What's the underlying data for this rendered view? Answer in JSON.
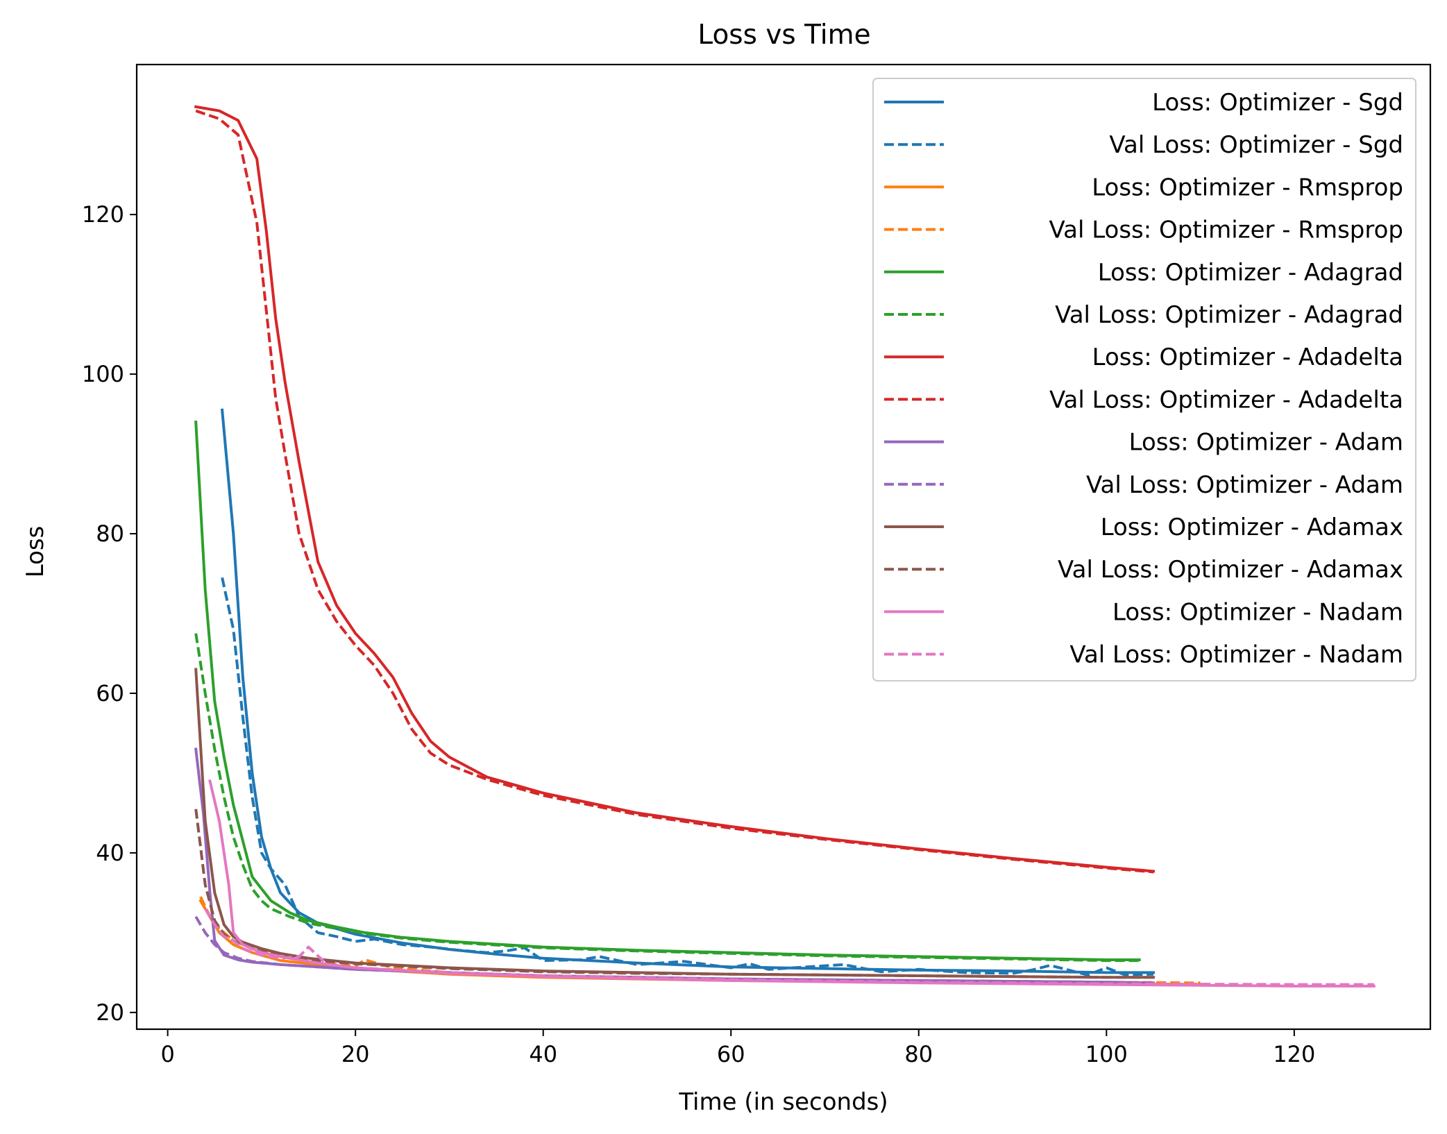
{
  "chart_data": {
    "type": "line",
    "title": "Loss vs Time",
    "xlabel": "Time (in seconds)",
    "ylabel": "Loss",
    "xlim": [
      -3.3,
      134.5
    ],
    "ylim": [
      17.9,
      138.8
    ],
    "xticks": [
      0,
      20,
      40,
      60,
      80,
      100,
      120
    ],
    "yticks": [
      20,
      40,
      60,
      80,
      100,
      120
    ],
    "grid": false,
    "legend_position": "top-right",
    "series": [
      {
        "name": "Loss: Optimizer - Sgd",
        "color": "#1f77b4",
        "dash": "solid",
        "x": [
          5.8,
          7.0,
          8.0,
          9.0,
          10.0,
          11.0,
          12.0,
          14.0,
          16.0,
          20.0,
          25.0,
          30.0,
          35.0,
          40.0,
          50.0,
          60.0,
          70.0,
          80.0,
          90.0,
          100.0,
          105.0
        ],
        "y": [
          95.5,
          80.0,
          62.0,
          50.0,
          42.0,
          38.0,
          35.0,
          32.5,
          31.2,
          29.8,
          28.7,
          27.9,
          27.3,
          26.8,
          26.2,
          25.7,
          25.5,
          25.3,
          25.2,
          25.0,
          25.0
        ]
      },
      {
        "name": "Val Loss: Optimizer - Sgd",
        "color": "#1f77b4",
        "dash": "dashed",
        "x": [
          5.8,
          7.0,
          8.0,
          9.0,
          10.0,
          11.0,
          12.5,
          14.0,
          16.0,
          18.0,
          20.0,
          22.0,
          25.0,
          28.0,
          31.0,
          34.0,
          36.0,
          38.0,
          40.0,
          44.0,
          46.0,
          50.0,
          55.0,
          60.0,
          62.0,
          64.0,
          68.0,
          72.0,
          76.0,
          80.0,
          85.0,
          90.0,
          92.0,
          94.0,
          98.0,
          100.0,
          102.0,
          105.0
        ],
        "y": [
          74.5,
          68.0,
          57.0,
          47.0,
          40.0,
          38.0,
          36.0,
          32.0,
          30.0,
          29.5,
          28.9,
          29.2,
          28.5,
          28.2,
          27.8,
          27.5,
          27.7,
          28.1,
          26.5,
          26.6,
          27.0,
          26.0,
          26.4,
          25.6,
          26.1,
          25.4,
          25.7,
          26.0,
          25.1,
          25.4,
          25.0,
          24.9,
          25.3,
          25.9,
          24.7,
          25.6,
          24.7,
          24.8
        ]
      },
      {
        "name": "Loss: Optimizer - Rmsprop",
        "color": "#ff7f0e",
        "dash": "solid",
        "x": [
          3.5,
          4.5,
          5.5,
          7.0,
          9.0,
          12.0,
          16.0,
          20.0,
          30.0,
          40.0,
          60.0,
          80.0,
          100.0,
          110.0
        ],
        "y": [
          34.0,
          32.0,
          30.0,
          28.5,
          27.5,
          26.5,
          26.0,
          25.5,
          24.8,
          24.4,
          24.0,
          23.8,
          23.6,
          23.5
        ]
      },
      {
        "name": "Val Loss: Optimizer - Rmsprop",
        "color": "#ff7f0e",
        "dash": "dashed",
        "x": [
          3.5,
          4.5,
          5.5,
          7.0,
          9.0,
          12.0,
          16.0,
          20.0,
          21.0,
          24.0,
          30.0,
          40.0,
          60.0,
          80.0,
          100.0,
          110.0
        ],
        "y": [
          34.5,
          32.0,
          30.5,
          29.0,
          28.0,
          27.0,
          26.2,
          25.8,
          26.6,
          25.6,
          25.0,
          24.6,
          24.2,
          24.0,
          23.8,
          23.7
        ]
      },
      {
        "name": "Loss: Optimizer - Adagrad",
        "color": "#2ca02c",
        "dash": "solid",
        "x": [
          3.0,
          4.0,
          5.0,
          6.0,
          7.0,
          8.0,
          9.0,
          10.0,
          11.0,
          13.0,
          15.0,
          18.0,
          21.0,
          25.0,
          30.0,
          40.0,
          50.0,
          60.0,
          70.0,
          80.0,
          90.0,
          100.0,
          103.5
        ],
        "y": [
          94.0,
          73.0,
          59.0,
          52.0,
          46.0,
          41.5,
          37.0,
          35.5,
          34.0,
          32.5,
          31.5,
          30.7,
          30.0,
          29.4,
          28.9,
          28.2,
          27.8,
          27.5,
          27.2,
          27.0,
          26.8,
          26.6,
          26.6
        ]
      },
      {
        "name": "Val Loss: Optimizer - Adagrad",
        "color": "#2ca02c",
        "dash": "dashed",
        "x": [
          3.0,
          4.0,
          5.0,
          6.0,
          7.0,
          8.0,
          9.0,
          10.0,
          11.0,
          13.0,
          15.0,
          18.0,
          21.0,
          25.0,
          30.0,
          40.0,
          50.0,
          60.0,
          70.0,
          80.0,
          90.0,
          100.0,
          103.5
        ],
        "y": [
          67.5,
          60.0,
          53.0,
          47.0,
          42.0,
          38.5,
          35.5,
          34.0,
          33.0,
          32.0,
          31.2,
          30.5,
          29.9,
          29.3,
          28.8,
          28.1,
          27.7,
          27.4,
          27.1,
          26.9,
          26.7,
          26.5,
          26.5
        ]
      },
      {
        "name": "Loss: Optimizer - Adadelta",
        "color": "#d62728",
        "dash": "solid",
        "x": [
          3.0,
          5.5,
          7.5,
          9.5,
          10.5,
          11.5,
          12.5,
          14.0,
          16.0,
          18.0,
          20.0,
          22.0,
          24.0,
          26.0,
          28.0,
          30.0,
          34.0,
          40.0,
          50.0,
          60.0,
          70.0,
          80.0,
          90.0,
          100.0,
          105.0
        ],
        "y": [
          133.5,
          133.0,
          131.8,
          127.0,
          118.0,
          107.0,
          99.0,
          89.0,
          76.5,
          71.0,
          67.5,
          65.0,
          62.0,
          57.5,
          54.0,
          52.0,
          49.5,
          47.5,
          45.0,
          43.3,
          41.8,
          40.5,
          39.3,
          38.2,
          37.7
        ]
      },
      {
        "name": "Val Loss: Optimizer - Adadelta",
        "color": "#d62728",
        "dash": "dashed",
        "x": [
          3.0,
          5.5,
          7.5,
          9.5,
          10.5,
          11.5,
          12.5,
          14.0,
          16.0,
          18.0,
          20.0,
          22.0,
          24.0,
          26.0,
          28.0,
          30.0,
          34.0,
          40.0,
          50.0,
          60.0,
          70.0,
          80.0,
          90.0,
          100.0,
          105.0
        ],
        "y": [
          133.0,
          132.0,
          130.0,
          119.0,
          108.0,
          97.0,
          90.0,
          80.0,
          73.0,
          69.0,
          66.0,
          63.5,
          60.0,
          55.5,
          52.5,
          51.0,
          49.2,
          47.2,
          44.8,
          43.1,
          41.7,
          40.4,
          39.2,
          38.1,
          37.6
        ]
      },
      {
        "name": "Loss: Optimizer - Adam",
        "color": "#9467bd",
        "dash": "solid",
        "x": [
          3.0,
          3.8,
          4.5,
          5.0,
          6.0,
          7.5,
          9.0,
          12.0,
          16.0,
          20.0,
          30.0,
          40.0,
          60.0,
          80.0,
          100.0,
          105.0
        ],
        "y": [
          53.0,
          45.0,
          35.0,
          29.0,
          27.2,
          26.6,
          26.3,
          26.0,
          25.7,
          25.4,
          25.0,
          24.6,
          24.2,
          24.0,
          23.8,
          23.7
        ]
      },
      {
        "name": "Val Loss: Optimizer - Adam",
        "color": "#9467bd",
        "dash": "dashed",
        "x": [
          3.0,
          4.0,
          5.0,
          6.0,
          7.5,
          9.0,
          12.0,
          16.0,
          20.0,
          30.0,
          40.0,
          60.0,
          80.0,
          100.0,
          105.0
        ],
        "y": [
          32.0,
          30.0,
          28.5,
          27.5,
          26.8,
          26.4,
          26.0,
          25.7,
          25.4,
          25.0,
          24.6,
          24.2,
          24.0,
          23.8,
          23.7
        ]
      },
      {
        "name": "Loss: Optimizer - Adamax",
        "color": "#8c564b",
        "dash": "solid",
        "x": [
          3.0,
          4.0,
          5.0,
          6.0,
          7.0,
          8.0,
          10.0,
          12.0,
          15.0,
          20.0,
          25.0,
          30.0,
          40.0,
          50.0,
          60.0,
          80.0,
          100.0,
          105.0
        ],
        "y": [
          63.0,
          44.0,
          35.0,
          31.0,
          29.5,
          28.8,
          28.0,
          27.4,
          26.8,
          26.2,
          25.9,
          25.6,
          25.2,
          25.0,
          24.8,
          24.6,
          24.4,
          24.4
        ]
      },
      {
        "name": "Val Loss: Optimizer - Adamax",
        "color": "#8c564b",
        "dash": "dashed",
        "x": [
          3.0,
          4.0,
          5.0,
          6.0,
          7.0,
          8.0,
          10.0,
          12.0,
          15.0,
          20.0,
          25.0,
          30.0,
          40.0,
          50.0,
          60.0,
          80.0,
          100.0,
          105.0
        ],
        "y": [
          45.5,
          36.0,
          31.5,
          29.8,
          29.0,
          28.5,
          27.8,
          27.2,
          26.6,
          26.1,
          25.8,
          25.5,
          25.1,
          24.9,
          24.8,
          24.6,
          24.4,
          24.4
        ]
      },
      {
        "name": "Loss: Optimizer - Nadam",
        "color": "#e377c2",
        "dash": "solid",
        "x": [
          4.5,
          5.5,
          6.5,
          7.0,
          8.0,
          10.0,
          13.0,
          16.0,
          20.0,
          30.0,
          40.0,
          60.0,
          80.0,
          100.0,
          120.0,
          128.5
        ],
        "y": [
          49.0,
          44.0,
          36.0,
          30.0,
          28.5,
          27.5,
          26.8,
          26.2,
          25.6,
          24.9,
          24.5,
          24.0,
          23.7,
          23.5,
          23.3,
          23.3
        ]
      },
      {
        "name": "Val Loss: Optimizer - Nadam",
        "color": "#e377c2",
        "dash": "dashed",
        "x": [
          4.0,
          5.0,
          6.0,
          7.0,
          8.0,
          10.0,
          12.0,
          14.0,
          15.0,
          17.0,
          20.0,
          30.0,
          40.0,
          60.0,
          80.0,
          100.0,
          120.0,
          128.5
        ],
        "y": [
          33.0,
          31.0,
          29.5,
          29.0,
          28.0,
          27.2,
          26.8,
          27.0,
          28.2,
          26.0,
          25.6,
          25.0,
          24.6,
          24.1,
          23.8,
          23.6,
          23.5,
          23.5
        ]
      }
    ]
  }
}
